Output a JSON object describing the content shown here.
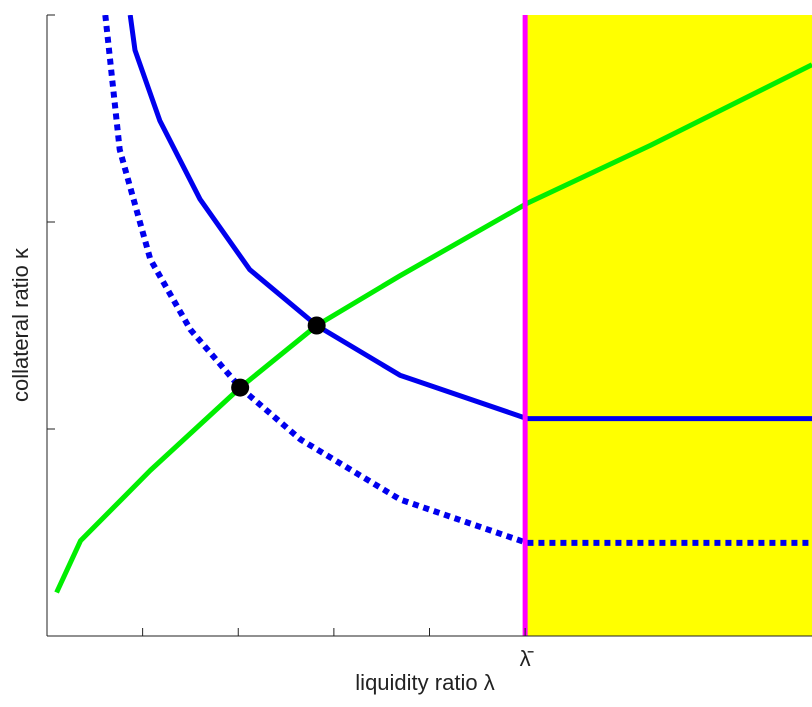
{
  "chart_data": {
    "type": "line",
    "xlabel": "liquidity ratio λ",
    "ylabel": "collateral ratio κ",
    "xlim": [
      0,
      8
    ],
    "ylim": [
      0,
      3
    ],
    "xticks": [
      1,
      2,
      3,
      4,
      {
        "value": 5,
        "label": "λ̄"
      }
    ],
    "yticks": [
      1,
      2,
      3
    ],
    "vline": {
      "x": 5,
      "color": "#ff00ff"
    },
    "shade_color": "#ffff00",
    "series": [
      {
        "color": "#00ee00",
        "dash": false,
        "x": [
          0.1,
          0.35,
          1.08,
          2.02,
          2.82,
          3.69,
          5.02,
          6.31,
          8.0
        ],
        "values": [
          0.21,
          0.46,
          0.8,
          1.2,
          1.5,
          1.74,
          2.09,
          2.37,
          2.76
        ]
      },
      {
        "color": "#0000ee",
        "dash": false,
        "x": [
          0.87,
          0.92,
          1.18,
          1.6,
          2.12,
          2.82,
          3.69,
          5.02,
          8.0
        ],
        "values": [
          3.0,
          2.83,
          2.49,
          2.11,
          1.77,
          1.5,
          1.26,
          1.05,
          1.05
        ]
      },
      {
        "color": "#0000ee",
        "dash": true,
        "x": [
          0.61,
          0.76,
          1.08,
          1.5,
          2.02,
          2.65,
          3.69,
          5.02,
          8.0
        ],
        "values": [
          3.0,
          2.35,
          1.82,
          1.48,
          1.2,
          0.95,
          0.66,
          0.45,
          0.45
        ]
      }
    ],
    "points": {
      "color": "#000000",
      "x": [
        2.82,
        2.02
      ],
      "values": [
        1.5,
        1.2
      ]
    }
  }
}
